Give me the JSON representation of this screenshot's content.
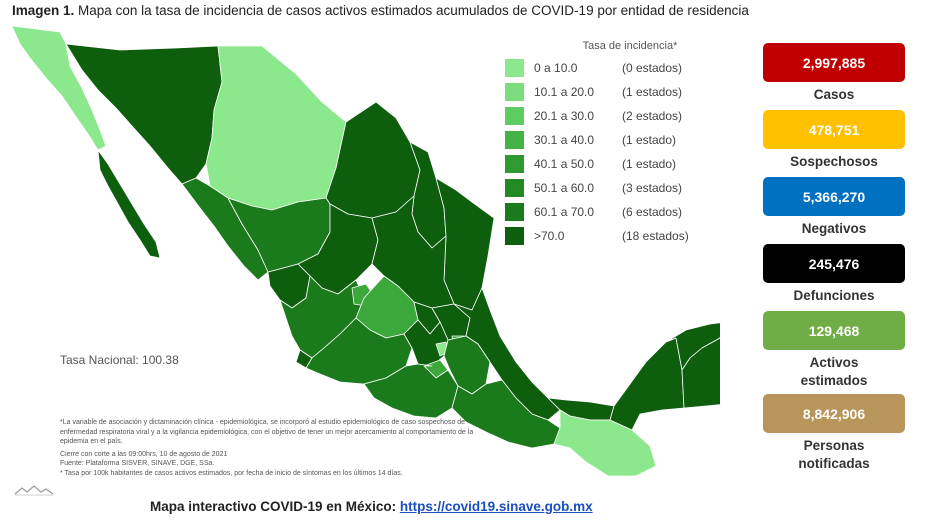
{
  "title": {
    "label": "Imagen 1.",
    "text": "Mapa con la tasa de incidencia de casos activos estimados acumulados de COVID-19 por entidad de residencia"
  },
  "legend": {
    "title": "Tasa de incidencia*",
    "items": [
      {
        "range": "0   a  10.0",
        "count": "(0 estados)",
        "color": "#8ce88c"
      },
      {
        "range": "10.1 a  20.0",
        "count": "(1 estados)",
        "color": "#7ddc7d"
      },
      {
        "range": "20.1 a  30.0",
        "count": "(2 estados)",
        "color": "#5fcc5f"
      },
      {
        "range": "30.1 a  40.0",
        "count": "(1 estado)",
        "color": "#44b344"
      },
      {
        "range": "40.1 a  50.0",
        "count": "(1 estado)",
        "color": "#2f9a2f"
      },
      {
        "range": "50.1 a  60.0",
        "count": "(3 estados)",
        "color": "#238a23"
      },
      {
        "range": "60.1 a  70.0",
        "count": "(6 estados)",
        "color": "#1b7a1b"
      },
      {
        "range": ">70.0",
        "count": "(18 estados)",
        "color": "#0d5e0d"
      }
    ]
  },
  "tasa_nacional": "Tasa Nacional: 100.38",
  "notes": [
    "*La variable de asociación y dictaminación clínica - epidemiológica, se incorporó al estudio epidemiológico de caso sospechoso de enfermedad respiratoria viral y a la vigilancia epidemiológica, con el objetivo de tener un mejor acercamiento al comportamiento de la epidemia en el país.",
    "Cierre con corte a las 09:00hrs, 10 de agosto de 2021",
    "Fuente: Plataforma SISVER, SINAVE, DGE, SSa.",
    "* Tasa por 100k habitantes de casos activos estimados, por fecha de inicio de síntomas en los últimos 14 días."
  ],
  "footer": {
    "label": "Mapa interactivo COVID-19 en México:",
    "link": "https://covid19.sinave.gob.mx"
  },
  "stats": [
    {
      "value": "2,997,885",
      "label": "Casos",
      "color": "#c00000"
    },
    {
      "value": "478,751",
      "label": "Sospechosos",
      "color": "#ffc000"
    },
    {
      "value": "5,366,270",
      "label": "Negativos",
      "color": "#0070c0"
    },
    {
      "value": "245,476",
      "label": "Defunciones",
      "color": "#000000"
    },
    {
      "value": "129,468",
      "label": "Activos estimados",
      "color": "#70ad47"
    },
    {
      "value": "8,842,906",
      "label": "Personas notificadas",
      "color": "#b8955a"
    }
  ],
  "map_colors": {
    "darkest": "#0d5e0d",
    "dark": "#1b7a1b",
    "medium": "#3aa83a",
    "light": "#8ce88c",
    "border": "#ffffff"
  }
}
